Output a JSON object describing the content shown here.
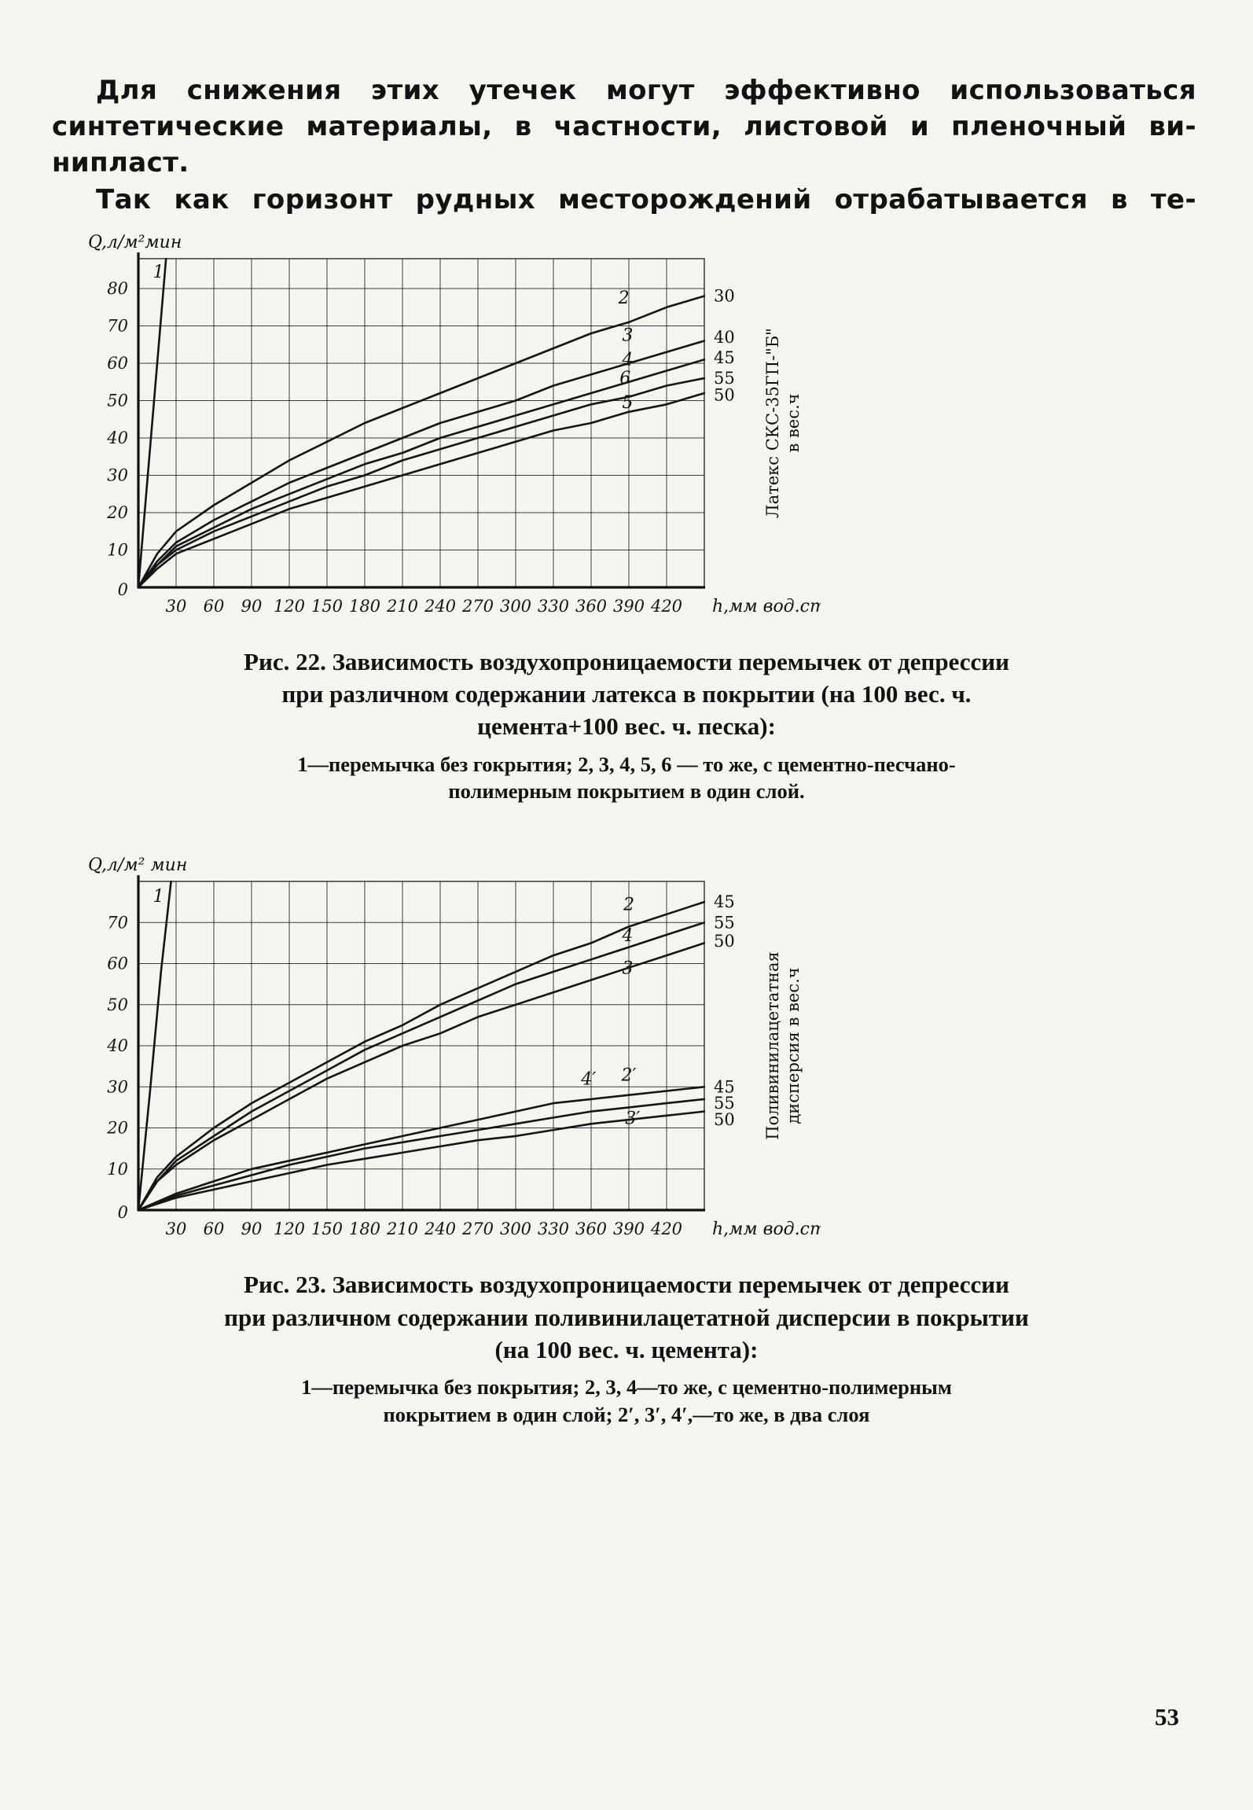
{
  "page": {
    "number": "53"
  },
  "intro": {
    "lines": [
      "Для снижения этих утечек могут эффективно использоваться",
      "синтетические материалы, в частности, листовой и пленочный ви-",
      "нипласт.",
      "Так как горизонт рудных месторождений отрабатывается в те-"
    ]
  },
  "fig22": {
    "caption_title": "Рис. 22. Зависимость воздухопроницаемости перемычек от депрессии при различном содержании латекса в покрытии (на 100 вес. ч. цемента+100 вес. ч. песка):",
    "caption_legend": "1—перемычка без гокрытия; 2, 3, 4, 5, 6 — то же, с цементно-песчано-полимерным покрытием в один слой."
  },
  "fig23": {
    "caption_title": "Рис. 23. Зависимость воздухопроницаемости перемычек от депрессии при различном содержании поливинилацетатной дисперсии в покрытии (на 100 вес. ч. цемента):",
    "caption_legend": "1—перемычка без покрытия; 2, 3, 4—то же, с цементно-полимерным покрытием в один слой; 2′, 3′, 4′,—то же, в два слоя"
  },
  "chart_data": [
    {
      "type": "line",
      "figure": "Рис. 22",
      "ylabel": "Q,л/м²мин",
      "xlabel": "h,мм вод.ст",
      "right_axis_label_line1": "Латекс СКС-35ГП-\"Б\"",
      "right_axis_label_line2": "в вес.ч",
      "xlim": [
        0,
        450
      ],
      "ylim": [
        0,
        88
      ],
      "xticks": [
        30,
        60,
        90,
        120,
        150,
        180,
        210,
        240,
        270,
        300,
        330,
        360,
        390,
        420
      ],
      "yticks": [
        10,
        20,
        30,
        40,
        50,
        60,
        70,
        80
      ],
      "origin_label": "0",
      "grid": true,
      "series": [
        {
          "name": "1",
          "points": [
            [
              0,
              0
            ],
            [
              7,
              28
            ],
            [
              14,
              56
            ],
            [
              22,
              88
            ]
          ]
        },
        {
          "name": "2",
          "points": [
            [
              0,
              0
            ],
            [
              15,
              9
            ],
            [
              30,
              15
            ],
            [
              60,
              22
            ],
            [
              90,
              28
            ],
            [
              120,
              34
            ],
            [
              150,
              39
            ],
            [
              180,
              44
            ],
            [
              210,
              48
            ],
            [
              240,
              52
            ],
            [
              270,
              56
            ],
            [
              300,
              60
            ],
            [
              330,
              64
            ],
            [
              360,
              68
            ],
            [
              390,
              71
            ],
            [
              420,
              75
            ],
            [
              450,
              78
            ]
          ]
        },
        {
          "name": "3",
          "points": [
            [
              0,
              0
            ],
            [
              15,
              7
            ],
            [
              30,
              12
            ],
            [
              60,
              18
            ],
            [
              90,
              23
            ],
            [
              120,
              28
            ],
            [
              150,
              32
            ],
            [
              180,
              36
            ],
            [
              210,
              40
            ],
            [
              240,
              44
            ],
            [
              270,
              47
            ],
            [
              300,
              50
            ],
            [
              330,
              54
            ],
            [
              360,
              57
            ],
            [
              390,
              60
            ],
            [
              420,
              63
            ],
            [
              450,
              66
            ]
          ]
        },
        {
          "name": "4",
          "points": [
            [
              0,
              0
            ],
            [
              15,
              6
            ],
            [
              30,
              11
            ],
            [
              60,
              16
            ],
            [
              90,
              21
            ],
            [
              120,
              25
            ],
            [
              150,
              29
            ],
            [
              180,
              33
            ],
            [
              210,
              36
            ],
            [
              240,
              40
            ],
            [
              270,
              43
            ],
            [
              300,
              46
            ],
            [
              330,
              49
            ],
            [
              360,
              52
            ],
            [
              390,
              55
            ],
            [
              420,
              58
            ],
            [
              450,
              61
            ]
          ]
        },
        {
          "name": "6",
          "points": [
            [
              0,
              0
            ],
            [
              15,
              6
            ],
            [
              30,
              10
            ],
            [
              60,
              15
            ],
            [
              90,
              19
            ],
            [
              120,
              23
            ],
            [
              150,
              27
            ],
            [
              180,
              30
            ],
            [
              210,
              34
            ],
            [
              240,
              37
            ],
            [
              270,
              40
            ],
            [
              300,
              43
            ],
            [
              330,
              46
            ],
            [
              360,
              49
            ],
            [
              390,
              51
            ],
            [
              420,
              54
            ],
            [
              450,
              56
            ]
          ]
        },
        {
          "name": "5",
          "points": [
            [
              0,
              0
            ],
            [
              15,
              5
            ],
            [
              30,
              9
            ],
            [
              60,
              13
            ],
            [
              90,
              17
            ],
            [
              120,
              21
            ],
            [
              150,
              24
            ],
            [
              180,
              27
            ],
            [
              210,
              30
            ],
            [
              240,
              33
            ],
            [
              270,
              36
            ],
            [
              300,
              39
            ],
            [
              330,
              42
            ],
            [
              360,
              44
            ],
            [
              390,
              47
            ],
            [
              420,
              49
            ],
            [
              450,
              52
            ]
          ]
        }
      ],
      "curve_labels": [
        {
          "text": "1",
          "x": 16,
          "y": 83
        },
        {
          "text": "2",
          "x": 386,
          "y": 76
        },
        {
          "text": "3",
          "x": 389,
          "y": 66
        },
        {
          "text": "4",
          "x": 389,
          "y": 59.5
        },
        {
          "text": "6",
          "x": 387,
          "y": 54.5
        },
        {
          "text": "5",
          "x": 389,
          "y": 48
        }
      ],
      "right_labels": [
        {
          "text": "30",
          "y": 78
        },
        {
          "text": "40",
          "y": 67
        },
        {
          "text": "45",
          "y": 61.5
        },
        {
          "text": "55",
          "y": 56
        },
        {
          "text": "50",
          "y": 51.5
        }
      ]
    },
    {
      "type": "line",
      "figure": "Рис. 23",
      "ylabel": "Q,л/м² мин",
      "xlabel": "h,мм вод.ст",
      "right_axis_label_line1": "Поливинилацетатная",
      "right_axis_label_line2": "дисперсия в вес.ч",
      "xlim": [
        0,
        450
      ],
      "ylim": [
        0,
        80
      ],
      "xticks": [
        30,
        60,
        90,
        120,
        150,
        180,
        210,
        240,
        270,
        300,
        330,
        360,
        390,
        420
      ],
      "yticks": [
        10,
        20,
        30,
        40,
        50,
        60,
        70
      ],
      "origin_label": "0",
      "grid": true,
      "series": [
        {
          "name": "1",
          "points": [
            [
              0,
              0
            ],
            [
              9,
              28
            ],
            [
              18,
              58
            ],
            [
              26,
              80
            ]
          ]
        },
        {
          "name": "2",
          "points": [
            [
              0,
              0
            ],
            [
              15,
              8
            ],
            [
              30,
              13
            ],
            [
              60,
              20
            ],
            [
              90,
              26
            ],
            [
              120,
              31
            ],
            [
              150,
              36
            ],
            [
              180,
              41
            ],
            [
              210,
              45
            ],
            [
              240,
              50
            ],
            [
              270,
              54
            ],
            [
              300,
              58
            ],
            [
              330,
              62
            ],
            [
              360,
              65
            ],
            [
              390,
              69
            ],
            [
              420,
              72
            ],
            [
              450,
              75
            ]
          ]
        },
        {
          "name": "4",
          "points": [
            [
              0,
              0
            ],
            [
              15,
              7
            ],
            [
              30,
              12
            ],
            [
              60,
              18
            ],
            [
              90,
              24
            ],
            [
              120,
              29
            ],
            [
              150,
              34
            ],
            [
              180,
              39
            ],
            [
              210,
              43
            ],
            [
              240,
              47
            ],
            [
              270,
              51
            ],
            [
              300,
              55
            ],
            [
              330,
              58
            ],
            [
              360,
              61
            ],
            [
              390,
              64
            ],
            [
              420,
              67
            ],
            [
              450,
              70
            ]
          ]
        },
        {
          "name": "3",
          "points": [
            [
              0,
              0
            ],
            [
              15,
              7
            ],
            [
              30,
              11
            ],
            [
              60,
              17
            ],
            [
              90,
              22
            ],
            [
              120,
              27
            ],
            [
              150,
              32
            ],
            [
              180,
              36
            ],
            [
              210,
              40
            ],
            [
              240,
              43
            ],
            [
              270,
              47
            ],
            [
              300,
              50
            ],
            [
              330,
              53
            ],
            [
              360,
              56
            ],
            [
              390,
              59
            ],
            [
              420,
              62
            ],
            [
              450,
              65
            ]
          ]
        },
        {
          "name": "2′",
          "points": [
            [
              0,
              0
            ],
            [
              30,
              4
            ],
            [
              60,
              7
            ],
            [
              90,
              10
            ],
            [
              120,
              12
            ],
            [
              150,
              14
            ],
            [
              180,
              16
            ],
            [
              210,
              18
            ],
            [
              240,
              20
            ],
            [
              270,
              22
            ],
            [
              300,
              24
            ],
            [
              330,
              26
            ],
            [
              360,
              27
            ],
            [
              390,
              28
            ],
            [
              420,
              29
            ],
            [
              450,
              30
            ]
          ]
        },
        {
          "name": "3′",
          "points": [
            [
              0,
              0
            ],
            [
              30,
              3.5
            ],
            [
              60,
              6
            ],
            [
              90,
              8.5
            ],
            [
              120,
              11
            ],
            [
              150,
              13
            ],
            [
              180,
              15
            ],
            [
              210,
              16.5
            ],
            [
              240,
              18
            ],
            [
              270,
              19.5
            ],
            [
              300,
              21
            ],
            [
              330,
              22.5
            ],
            [
              360,
              24
            ],
            [
              390,
              25
            ],
            [
              420,
              26
            ],
            [
              450,
              27
            ]
          ]
        },
        {
          "name": "4′",
          "points": [
            [
              0,
              0
            ],
            [
              30,
              3
            ],
            [
              60,
              5
            ],
            [
              90,
              7
            ],
            [
              120,
              9
            ],
            [
              150,
              11
            ],
            [
              180,
              12.5
            ],
            [
              210,
              14
            ],
            [
              240,
              15.5
            ],
            [
              270,
              17
            ],
            [
              300,
              18
            ],
            [
              330,
              19.5
            ],
            [
              360,
              21
            ],
            [
              390,
              22
            ],
            [
              420,
              23
            ],
            [
              450,
              24
            ]
          ]
        }
      ],
      "curve_labels": [
        {
          "text": "1",
          "x": 16,
          "y": 75
        },
        {
          "text": "2",
          "x": 390,
          "y": 73
        },
        {
          "text": "4",
          "x": 389,
          "y": 65.5
        },
        {
          "text": "3",
          "x": 389,
          "y": 57.5
        },
        {
          "text": "4′",
          "x": 358,
          "y": 30.5
        },
        {
          "text": "2′",
          "x": 390,
          "y": 31.5
        },
        {
          "text": "3′",
          "x": 393,
          "y": 21
        }
      ],
      "right_labels": [
        {
          "text": "45",
          "y": 75
        },
        {
          "text": "55",
          "y": 70
        },
        {
          "text": "50",
          "y": 65.5
        },
        {
          "text": "45",
          "y": 30
        },
        {
          "text": "55",
          "y": 26
        },
        {
          "text": "50",
          "y": 22
        }
      ]
    }
  ]
}
